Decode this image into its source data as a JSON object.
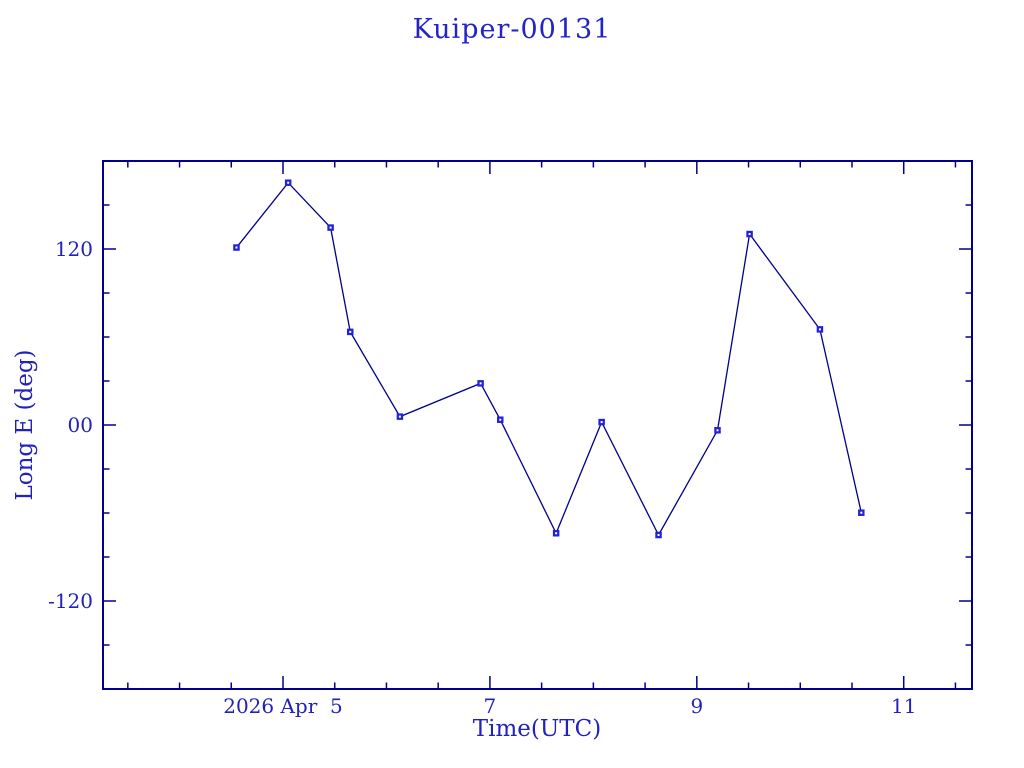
{
  "colors": {
    "background": "#ffffff",
    "frame": "#00008b",
    "line": "#00008b",
    "marker": "#2222d6",
    "marker_center": "#ffffff",
    "text": "#2222bb",
    "title_text": "#2323c8"
  },
  "chart_data": {
    "type": "line",
    "title": "Kuiper-00131",
    "xlabel": "Time(UTC)",
    "ylabel": "Long E (deg)",
    "xlim": [
      3.26,
      11.66
    ],
    "ylim": [
      -180,
      180
    ],
    "grid": false,
    "legend": "none",
    "marker": "filled-square-with-center-dot",
    "x_axis_note": "x values are days of 2026 April, UTC",
    "x_major_ticks": [
      {
        "value": 5,
        "label": "2026 Apr  5"
      },
      {
        "value": 7,
        "label": "7"
      },
      {
        "value": 9,
        "label": "9"
      },
      {
        "value": 11,
        "label": "11"
      }
    ],
    "x_minor_step": 0.5,
    "y_major_ticks": [
      {
        "value": 120,
        "label": "120"
      },
      {
        "value": 0,
        "label": "00"
      },
      {
        "value": -120,
        "label": "-120"
      }
    ],
    "y_minor_step": 30,
    "series": [
      {
        "name": "Long E",
        "points": [
          {
            "day": 4.55,
            "deg": 121.0
          },
          {
            "day": 5.05,
            "deg": 165.2
          },
          {
            "day": 5.46,
            "deg": 134.6
          },
          {
            "day": 5.65,
            "deg": 63.5
          },
          {
            "day": 6.13,
            "deg": 5.7
          },
          {
            "day": 6.91,
            "deg": 28.4
          },
          {
            "day": 7.1,
            "deg": 3.6
          },
          {
            "day": 7.64,
            "deg": -73.8
          },
          {
            "day": 8.08,
            "deg": 2.0
          },
          {
            "day": 8.63,
            "deg": -75.0
          },
          {
            "day": 9.2,
            "deg": -3.6
          },
          {
            "day": 9.51,
            "deg": 130.2
          },
          {
            "day": 10.19,
            "deg": 65.2
          },
          {
            "day": 10.59,
            "deg": -59.8
          }
        ]
      }
    ]
  }
}
